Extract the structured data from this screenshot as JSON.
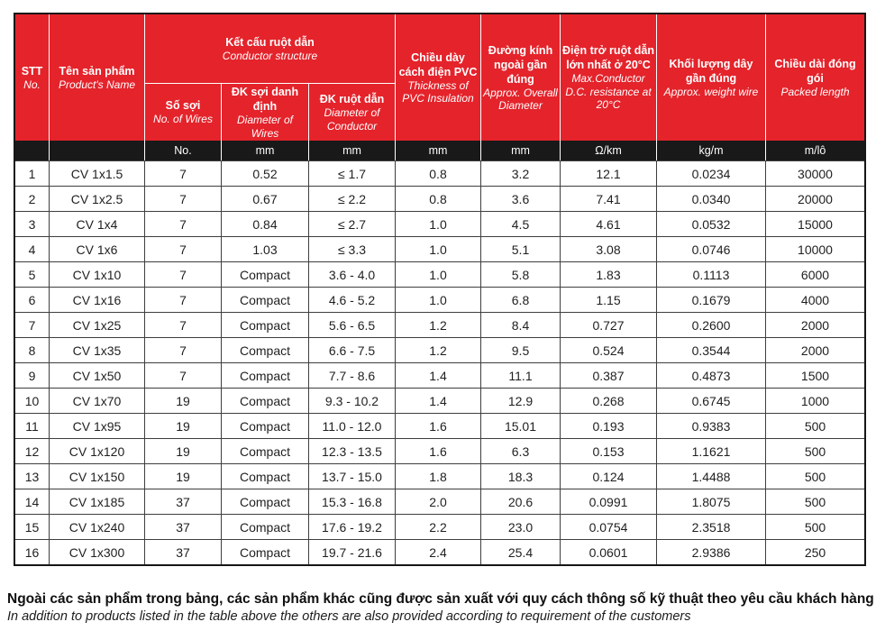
{
  "colors": {
    "header_red": "#e4232b",
    "units_black": "#191919",
    "grid_border": "#3e3e3e",
    "header_text": "#ffffff",
    "body_text": "#1f1f1f"
  },
  "table": {
    "header": {
      "stt": {
        "vi": "STT",
        "en": "No."
      },
      "product": {
        "vi": "Tên sản phẩm",
        "en": "Product's Name"
      },
      "conductor_group": {
        "vi": "Kết cấu ruột dẫn",
        "en": "Conductor structure"
      },
      "num_wires": {
        "vi": "Số sợi",
        "en": "No. of Wires"
      },
      "wire_diameter": {
        "vi": "ĐK sợi danh định",
        "en": "Diameter of Wires"
      },
      "conductor_diameter": {
        "vi": "ĐK ruột dẫn",
        "en": "Diameter of Conductor"
      },
      "insulation": {
        "vi": "Chiều dày cách điện PVC",
        "en": "Thickness of PVC Insulation"
      },
      "overall_diameter": {
        "vi": "Đường kính ngoài gần đúng",
        "en": "Approx. Overall Diameter"
      },
      "resistance": {
        "vi": "Điện trở ruột dẫn lớn nhất ở 20°C",
        "en": "Max.Conductor D.C. resistance at 20°C"
      },
      "weight": {
        "vi": "Khối lượng dây gần đúng",
        "en": "Approx. weight wire"
      },
      "packed_length": {
        "vi": "Chiều dài đóng gói",
        "en": "Packed length"
      }
    },
    "units": [
      "",
      "",
      "No.",
      "mm",
      "mm",
      "mm",
      "mm",
      "Ω/km",
      "kg/m",
      "m/lô"
    ],
    "rows": [
      [
        "1",
        "CV 1x1.5",
        "7",
        "0.52",
        "≤ 1.7",
        "0.8",
        "3.2",
        "12.1",
        "0.0234",
        "30000"
      ],
      [
        "2",
        "CV 1x2.5",
        "7",
        "0.67",
        "≤ 2.2",
        "0.8",
        "3.6",
        "7.41",
        "0.0340",
        "20000"
      ],
      [
        "3",
        "CV 1x4",
        "7",
        "0.84",
        "≤ 2.7",
        "1.0",
        "4.5",
        "4.61",
        "0.0532",
        "15000"
      ],
      [
        "4",
        "CV 1x6",
        "7",
        "1.03",
        "≤ 3.3",
        "1.0",
        "5.1",
        "3.08",
        "0.0746",
        "10000"
      ],
      [
        "5",
        "CV 1x10",
        "7",
        "Compact",
        "3.6 - 4.0",
        "1.0",
        "5.8",
        "1.83",
        "0.1113",
        "6000"
      ],
      [
        "6",
        "CV 1x16",
        "7",
        "Compact",
        "4.6 - 5.2",
        "1.0",
        "6.8",
        "1.15",
        "0.1679",
        "4000"
      ],
      [
        "7",
        "CV 1x25",
        "7",
        "Compact",
        "5.6 - 6.5",
        "1.2",
        "8.4",
        "0.727",
        "0.2600",
        "2000"
      ],
      [
        "8",
        "CV 1x35",
        "7",
        "Compact",
        "6.6 - 7.5",
        "1.2",
        "9.5",
        "0.524",
        "0.3544",
        "2000"
      ],
      [
        "9",
        "CV 1x50",
        "7",
        "Compact",
        "7.7 - 8.6",
        "1.4",
        "11.1",
        "0.387",
        "0.4873",
        "1500"
      ],
      [
        "10",
        "CV 1x70",
        "19",
        "Compact",
        "9.3 - 10.2",
        "1.4",
        "12.9",
        "0.268",
        "0.6745",
        "1000"
      ],
      [
        "11",
        "CV 1x95",
        "19",
        "Compact",
        "11.0 - 12.0",
        "1.6",
        "15.01",
        "0.193",
        "0.9383",
        "500"
      ],
      [
        "12",
        "CV 1x120",
        "19",
        "Compact",
        "12.3 - 13.5",
        "1.6",
        "6.3",
        "0.153",
        "1.1621",
        "500"
      ],
      [
        "13",
        "CV 1x150",
        "19",
        "Compact",
        "13.7 - 15.0",
        "1.8",
        "18.3",
        "0.124",
        "1.4488",
        "500"
      ],
      [
        "14",
        "CV 1x185",
        "37",
        "Compact",
        "15.3 - 16.8",
        "2.0",
        "20.6",
        "0.0991",
        "1.8075",
        "500"
      ],
      [
        "15",
        "CV 1x240",
        "37",
        "Compact",
        "17.6 - 19.2",
        "2.2",
        "23.0",
        "0.0754",
        "2.3518",
        "500"
      ],
      [
        "16",
        "CV 1x300",
        "37",
        "Compact",
        "19.7 - 21.6",
        "2.4",
        "25.4",
        "0.0601",
        "2.9386",
        "250"
      ]
    ],
    "column_keys": [
      "stt",
      "product-name",
      "num-wires",
      "wire-diameter",
      "conductor-diameter",
      "insulation-thickness",
      "overall-diameter",
      "resistance",
      "weight",
      "packed-length"
    ]
  },
  "footer": {
    "vi": "Ngoài các sản phẩm trong bảng, các sản phẩm khác cũng được sản xuất với quy cách thông số kỹ thuật  theo yêu cầu khách hàng",
    "en": "In addition to products listed in the table above the others are also provided according to requirement of the customers"
  }
}
